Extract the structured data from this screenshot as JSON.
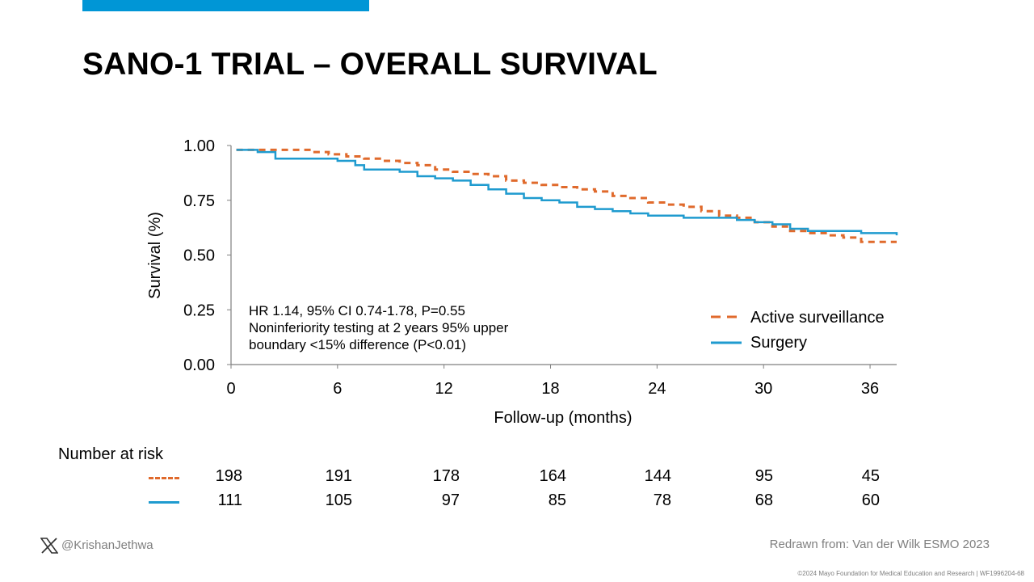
{
  "slide": {
    "title": "SANO-1 TRIAL – OVERALL SURVIVAL",
    "accent_color": "#0096d6",
    "handle": "@KrishanJethwa",
    "source": "Redrawn from: Van der Wilk ESMO 2023",
    "copyright": "©2024 Mayo Foundation for Medical Education and Research  |  WF1996204-68"
  },
  "chart_data": {
    "type": "line",
    "xlabel": "Follow-up (months)",
    "ylabel": "Survival (%)",
    "xlim": [
      0,
      37.5
    ],
    "ylim": [
      0,
      1
    ],
    "x_ticks": [
      "0",
      "6",
      "12",
      "18",
      "24",
      "30",
      "36"
    ],
    "y_ticks": [
      "1.00",
      "0.75",
      "0.50",
      "0.25",
      "0.00"
    ],
    "annotation": [
      "HR 1.14, 95% CI 0.74-1.78, P=0.55",
      "Noninferiority testing at 2 years 95% upper",
      "boundary  <15% difference (P<0.01)"
    ],
    "legend_position": "lower-right",
    "series": [
      {
        "name": "Active surveillance",
        "color": "#e06a2c",
        "style": "dashed",
        "x": [
          0.3,
          1.5,
          3.5,
          4.5,
          5.5,
          6.5,
          7.5,
          8.5,
          9.5,
          10.5,
          11.5,
          12.5,
          13.5,
          14.5,
          15.5,
          16.5,
          17.5,
          18.5,
          19.5,
          20.5,
          21.5,
          22.5,
          23.5,
          24.5,
          25.5,
          26.5,
          27.5,
          28.5,
          29.5,
          30.5,
          31.5,
          32.5,
          33.5,
          34.5,
          35.5,
          36.5,
          37.5
        ],
        "y": [
          0.98,
          0.98,
          0.98,
          0.97,
          0.96,
          0.95,
          0.94,
          0.93,
          0.92,
          0.91,
          0.89,
          0.88,
          0.87,
          0.86,
          0.84,
          0.83,
          0.82,
          0.81,
          0.8,
          0.79,
          0.77,
          0.76,
          0.74,
          0.73,
          0.72,
          0.7,
          0.68,
          0.67,
          0.65,
          0.63,
          0.61,
          0.6,
          0.59,
          0.58,
          0.56,
          0.56,
          0.56
        ]
      },
      {
        "name": "Surgery",
        "color": "#1f9bcf",
        "style": "solid",
        "x": [
          0.3,
          1.5,
          2.5,
          4,
          6,
          7,
          7.5,
          9.5,
          10.5,
          11.5,
          12.5,
          13.5,
          14.5,
          15.5,
          16.5,
          17.5,
          18.5,
          19.5,
          20.5,
          21.5,
          22.5,
          23.5,
          24.5,
          25.5,
          26.5,
          27.5,
          28.5,
          29.5,
          30.5,
          31.5,
          32.5,
          33.5,
          34.5,
          35.5,
          36.5,
          37.5
        ],
        "y": [
          0.98,
          0.97,
          0.94,
          0.94,
          0.93,
          0.91,
          0.89,
          0.88,
          0.86,
          0.85,
          0.84,
          0.82,
          0.8,
          0.78,
          0.76,
          0.75,
          0.74,
          0.72,
          0.71,
          0.7,
          0.69,
          0.68,
          0.68,
          0.67,
          0.67,
          0.67,
          0.66,
          0.65,
          0.64,
          0.62,
          0.61,
          0.61,
          0.61,
          0.6,
          0.6,
          0.59
        ]
      }
    ],
    "number_at_risk": {
      "label": "Number at risk",
      "rows": [
        {
          "series": "Active surveillance",
          "values": [
            "198",
            "191",
            "178",
            "164",
            "144",
            "95",
            "45"
          ]
        },
        {
          "series": "Surgery",
          "values": [
            "111",
            "105",
            "97",
            "85",
            "78",
            "68",
            "60"
          ]
        }
      ]
    }
  }
}
